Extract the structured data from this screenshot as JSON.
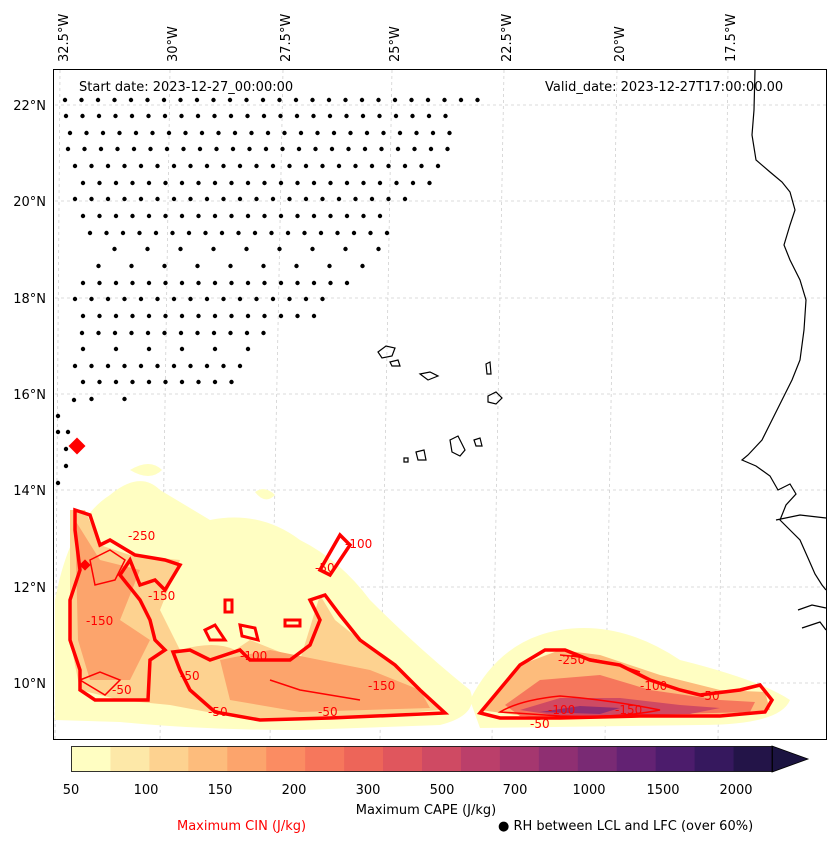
{
  "map": {
    "start_date": "Start date: 2023-12-27_00:00:00",
    "valid_date": "Valid_date: 2023-12-27T17:00:00.00",
    "lon_ticks": [
      "32.5°W",
      "30°W",
      "27.5°W",
      "25°W",
      "22.5°W",
      "20°W",
      "17.5°W"
    ],
    "lat_ticks": [
      "22°N",
      "20°N",
      "18°N",
      "16°N",
      "14°N",
      "12°N",
      "10°N"
    ]
  },
  "cin_labels": [
    "-250",
    "-100",
    "-50",
    "-150",
    "-150",
    "-50",
    "-100",
    "-150",
    "-50",
    "-50",
    "-50",
    "-250",
    "-100",
    "-150",
    "-100",
    "-50",
    "-50"
  ],
  "colorbar": {
    "label": "Maximum CAPE (J/kg)",
    "ticks": [
      "50",
      "100",
      "150",
      "200",
      "300",
      "500",
      "700",
      "1000",
      "1500",
      "2000"
    ],
    "colors": [
      "#fffec2",
      "#fde8a8",
      "#fdd290",
      "#fdbc7c",
      "#fca46c",
      "#fb8c62",
      "#f6775c",
      "#ed6559",
      "#e0565d",
      "#cf4a63",
      "#bb3f6a",
      "#a5376f",
      "#8f2f72",
      "#792a74",
      "#632273",
      "#4c1c6c",
      "#36185e",
      "#231448"
    ]
  },
  "legend": {
    "cin": "Maximum CIN (J/kg)",
    "rh": "● RH between LCL and LFC (over 60%)"
  },
  "colors": {
    "cin": "#ff0000",
    "coast": "#000000",
    "grid": "#cccccc"
  }
}
